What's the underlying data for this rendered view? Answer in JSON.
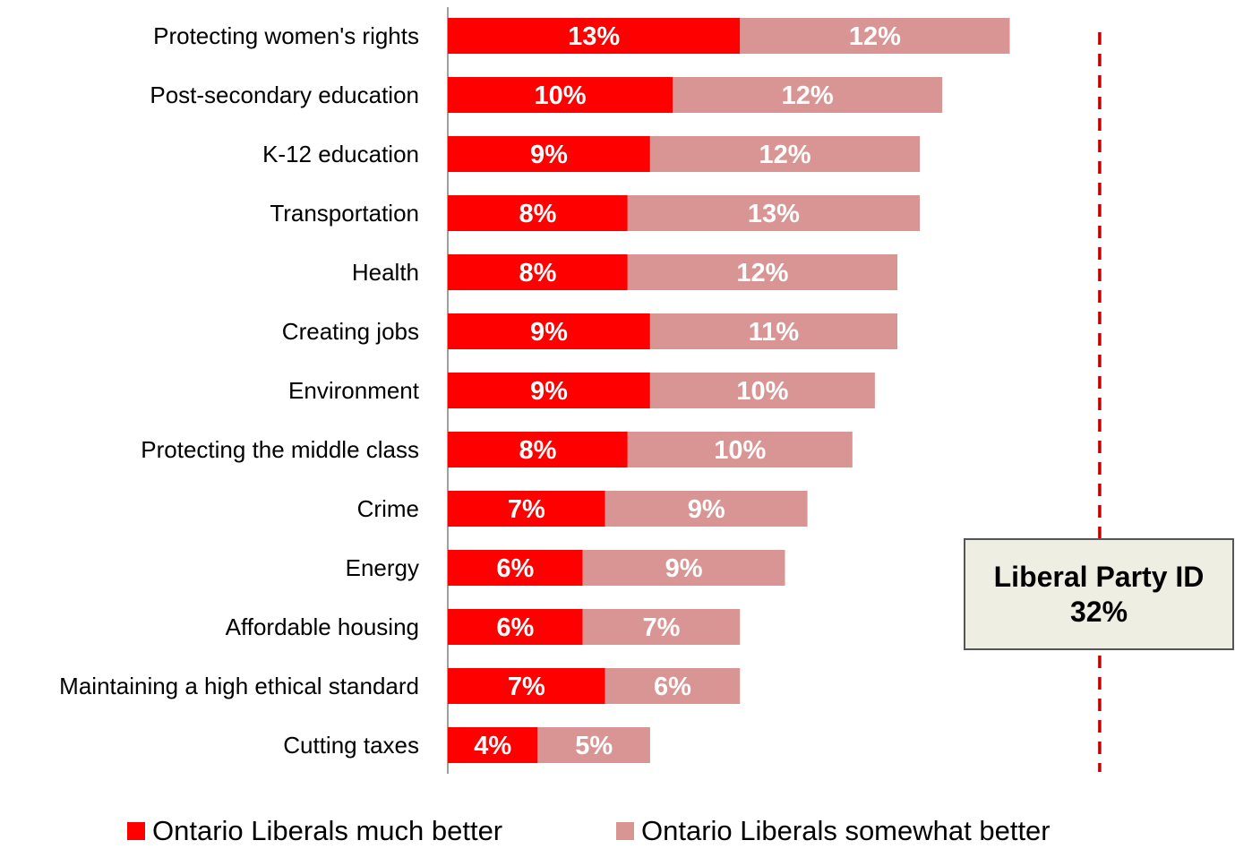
{
  "chart_data": {
    "type": "bar",
    "orientation": "horizontal",
    "stacked": true,
    "categories": [
      "Protecting women's rights",
      "Post-secondary education",
      "K-12 education",
      "Transportation",
      "Health",
      "Creating jobs",
      "Environment",
      "Protecting the middle class",
      "Crime",
      "Energy",
      "Affordable housing",
      "Maintaining a high ethical standard",
      "Cutting taxes"
    ],
    "series": [
      {
        "name": "Ontario Liberals much better",
        "color": "#ff0000",
        "values": [
          13,
          10,
          9,
          8,
          8,
          9,
          9,
          8,
          7,
          6,
          6,
          7,
          4
        ],
        "labels": [
          "13%",
          "10%",
          "9%",
          "8%",
          "8%",
          "9%",
          "9%",
          "8%",
          "7%",
          "6%",
          "6%",
          "7%",
          "4%"
        ]
      },
      {
        "name": "Ontario Liberals somewhat better",
        "color": "#d99594",
        "values": [
          12,
          12,
          12,
          13,
          12,
          11,
          10,
          10,
          9,
          9,
          7,
          6,
          5
        ],
        "labels": [
          "12%",
          "12%",
          "12%",
          "13%",
          "12%",
          "11%",
          "10%",
          "10%",
          "9%",
          "9%",
          "7%",
          "6%",
          "5%"
        ]
      }
    ],
    "xlim": [
      0,
      29
    ],
    "grid": false,
    "legend_position": "bottom",
    "reference_line": {
      "value": 29,
      "color": "#c00000",
      "style": "dashed"
    },
    "annotation": {
      "title": "Liberal Party ID",
      "value": "32%"
    }
  }
}
